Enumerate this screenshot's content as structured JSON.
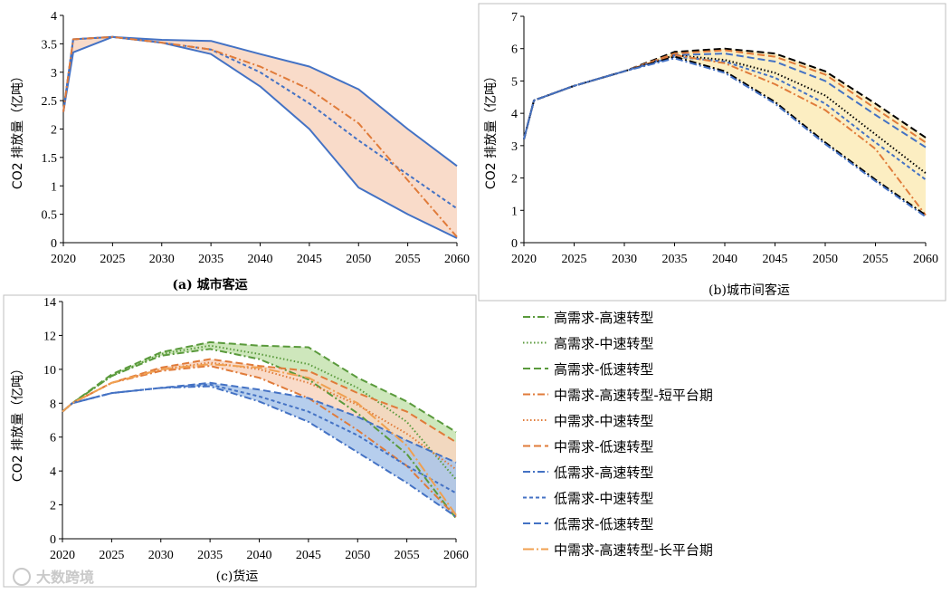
{
  "figure": {
    "watermark": "大数跨境",
    "legend": [
      {
        "name": "高需求-高速转型",
        "color": "#5a9a3c",
        "dash": "dashdot"
      },
      {
        "name": "高需求-中速转型",
        "color": "#5a9a3c",
        "dash": "dot"
      },
      {
        "name": "高需求-低速转型",
        "color": "#5a9a3c",
        "dash": "dash"
      },
      {
        "name": "中需求-高速转型-短平台期",
        "color": "#e07b3a",
        "dash": "dashdot"
      },
      {
        "name": "中需求-中速转型",
        "color": "#e07b3a",
        "dash": "dot"
      },
      {
        "name": "中需求-低速转型",
        "color": "#e07b3a",
        "dash": "dash"
      },
      {
        "name": "低需求-高速转型",
        "color": "#4472c4",
        "dash": "dashdot"
      },
      {
        "name": "低需求-中速转型",
        "color": "#4472c4",
        "dash": "shortdash"
      },
      {
        "name": "低需求-低速转型",
        "color": "#4472c4",
        "dash": "dash"
      },
      {
        "name": "中需求-高速转型-长平台期",
        "color": "#f0a050",
        "dash": "longdashdot"
      }
    ]
  },
  "chart_data": [
    {
      "type": "line",
      "caption_prefix": "(a)",
      "caption": "城市客运",
      "ylabel": "CO2 排放量（亿吨）",
      "xlim": [
        2020,
        2060
      ],
      "ylim": [
        0,
        4
      ],
      "xticks": [
        2020,
        2025,
        2030,
        2035,
        2040,
        2045,
        2050,
        2055,
        2060
      ],
      "yticks": [
        0,
        0.5,
        1,
        1.5,
        2,
        2.5,
        3,
        3.5,
        4
      ],
      "ytick_labels": [
        "0",
        "0.5",
        "1",
        "1.5",
        "2",
        "2.5",
        "3",
        "3.5",
        "4"
      ],
      "band": {
        "color": "#f8d5bf",
        "upper_series": "upper",
        "lower_series": "lower"
      },
      "series": [
        {
          "id": "upper",
          "color": "#4472c4",
          "dash": "solid",
          "x": [
            2020,
            2021,
            2025,
            2030,
            2035,
            2040,
            2045,
            2050,
            2055,
            2060
          ],
          "y": [
            2.3,
            3.58,
            3.62,
            3.57,
            3.55,
            3.32,
            3.1,
            2.7,
            2.0,
            1.35
          ]
        },
        {
          "id": "lower",
          "color": "#4472c4",
          "dash": "solid",
          "x": [
            2020,
            2021,
            2025,
            2030,
            2035,
            2040,
            2045,
            2050,
            2055,
            2060
          ],
          "y": [
            2.3,
            3.35,
            3.62,
            3.52,
            3.32,
            2.75,
            2.0,
            0.97,
            0.5,
            0.08
          ]
        },
        {
          "id": "mid",
          "color": "#4472c4",
          "dash": "shortdash",
          "x": [
            2020,
            2021,
            2025,
            2030,
            2035,
            2040,
            2045,
            2050,
            2055,
            2060
          ],
          "y": [
            2.3,
            3.58,
            3.62,
            3.52,
            3.4,
            3.0,
            2.45,
            1.8,
            1.2,
            0.6
          ]
        },
        {
          "id": "orange",
          "color": "#e07b3a",
          "dash": "dashdot",
          "x": [
            2020,
            2021,
            2025,
            2030,
            2035,
            2040,
            2045,
            2050,
            2055,
            2060
          ],
          "y": [
            2.3,
            3.58,
            3.62,
            3.52,
            3.4,
            3.1,
            2.7,
            2.1,
            1.1,
            0.1
          ]
        }
      ]
    },
    {
      "type": "line",
      "caption_prefix": "(b)",
      "caption": "城市间客运",
      "ylabel": "CO2 排放量（亿吨）",
      "xlim": [
        2020,
        2060
      ],
      "ylim": [
        0,
        7
      ],
      "xticks": [
        2020,
        2025,
        2030,
        2035,
        2040,
        2045,
        2050,
        2055,
        2060
      ],
      "yticks": [
        0,
        1,
        2,
        3,
        4,
        5,
        6,
        7
      ],
      "ytick_labels": [
        "0",
        "1",
        "2",
        "3",
        "4",
        "5",
        "6",
        "7"
      ],
      "band": {
        "color": "#fbebb7",
        "upper_series": "b1",
        "lower_series": "b7"
      },
      "series": [
        {
          "id": "b1",
          "color": "#000000",
          "dash": "dash",
          "x": [
            2020,
            2021,
            2025,
            2030,
            2035,
            2040,
            2045,
            2050,
            2055,
            2060
          ],
          "y": [
            3.2,
            4.4,
            4.85,
            5.3,
            5.9,
            6.0,
            5.85,
            5.3,
            4.3,
            3.25
          ]
        },
        {
          "id": "b2",
          "color": "#e07b3a",
          "dash": "dash",
          "x": [
            2020,
            2021,
            2025,
            2030,
            2035,
            2040,
            2045,
            2050,
            2055,
            2060
          ],
          "y": [
            3.2,
            4.4,
            4.85,
            5.3,
            5.85,
            5.95,
            5.75,
            5.2,
            4.15,
            3.1
          ]
        },
        {
          "id": "b3",
          "color": "#4472c4",
          "dash": "dash",
          "x": [
            2020,
            2021,
            2025,
            2030,
            2035,
            2040,
            2045,
            2050,
            2055,
            2060
          ],
          "y": [
            3.2,
            4.4,
            4.85,
            5.3,
            5.8,
            5.85,
            5.6,
            5.0,
            3.95,
            2.95
          ]
        },
        {
          "id": "b4",
          "color": "#000000",
          "dash": "dot",
          "x": [
            2020,
            2021,
            2025,
            2030,
            2035,
            2040,
            2045,
            2050,
            2055,
            2060
          ],
          "y": [
            3.2,
            4.4,
            4.85,
            5.3,
            5.8,
            5.65,
            5.25,
            4.55,
            3.35,
            2.15
          ]
        },
        {
          "id": "b5",
          "color": "#4472c4",
          "dash": "shortdash",
          "x": [
            2020,
            2021,
            2025,
            2030,
            2035,
            2040,
            2045,
            2050,
            2055,
            2060
          ],
          "y": [
            3.2,
            4.4,
            4.85,
            5.3,
            5.75,
            5.6,
            5.1,
            4.3,
            3.1,
            1.95
          ]
        },
        {
          "id": "b6",
          "color": "#e07b3a",
          "dash": "dashdot",
          "x": [
            2020,
            2021,
            2025,
            2030,
            2035,
            2040,
            2045,
            2050,
            2055,
            2060
          ],
          "y": [
            3.2,
            4.4,
            4.85,
            5.3,
            5.8,
            5.55,
            4.9,
            4.1,
            2.9,
            0.85
          ]
        },
        {
          "id": "b7",
          "color": "#000000",
          "dash": "dashdot",
          "x": [
            2020,
            2021,
            2025,
            2030,
            2035,
            2040,
            2045,
            2050,
            2055,
            2060
          ],
          "y": [
            3.2,
            4.4,
            4.85,
            5.3,
            5.75,
            5.3,
            4.35,
            3.1,
            1.95,
            0.85
          ]
        },
        {
          "id": "b8",
          "color": "#4472c4",
          "dash": "dashdot",
          "x": [
            2020,
            2021,
            2025,
            2030,
            2035,
            2040,
            2045,
            2050,
            2055,
            2060
          ],
          "y": [
            3.2,
            4.4,
            4.85,
            5.3,
            5.7,
            5.25,
            4.3,
            3.05,
            1.9,
            0.8
          ]
        }
      ]
    },
    {
      "type": "line",
      "caption_prefix": "(c)",
      "caption": "货运",
      "ylabel": "CO2 排放量（亿吨）",
      "xlim": [
        2020,
        2060
      ],
      "ylim": [
        0,
        14
      ],
      "xticks": [
        2020,
        2025,
        2030,
        2035,
        2040,
        2045,
        2050,
        2055,
        2060
      ],
      "yticks": [
        0,
        2,
        4,
        6,
        8,
        10,
        12,
        14
      ],
      "ytick_labels": [
        "0",
        "2",
        "4",
        "6",
        "8",
        "10",
        "12",
        "14"
      ],
      "bands": [
        {
          "color": "#c6e3b0",
          "upper_series": "h_low",
          "lower_series": "h_high"
        },
        {
          "color": "#f8d5bf",
          "upper_series": "m_low",
          "lower_series": "m_short"
        },
        {
          "color": "#a9c6ea",
          "upper_series": "l_low",
          "lower_series": "l_high"
        }
      ],
      "series": [
        {
          "id": "h_high",
          "color": "#5a9a3c",
          "dash": "dashdot",
          "x": [
            2020,
            2021,
            2025,
            2030,
            2035,
            2040,
            2045,
            2050,
            2055,
            2060
          ],
          "y": [
            7.5,
            8.0,
            9.6,
            10.8,
            11.2,
            10.6,
            9.4,
            7.4,
            5.0,
            1.2
          ]
        },
        {
          "id": "h_mid",
          "color": "#5a9a3c",
          "dash": "dot",
          "x": [
            2020,
            2021,
            2025,
            2030,
            2035,
            2040,
            2045,
            2050,
            2055,
            2060
          ],
          "y": [
            7.5,
            8.0,
            9.6,
            10.9,
            11.4,
            10.9,
            10.3,
            8.9,
            6.9,
            3.5
          ]
        },
        {
          "id": "h_low",
          "color": "#5a9a3c",
          "dash": "dash",
          "x": [
            2020,
            2021,
            2025,
            2030,
            2035,
            2040,
            2045,
            2050,
            2055,
            2060
          ],
          "y": [
            7.5,
            8.0,
            9.7,
            11.0,
            11.6,
            11.4,
            11.3,
            9.5,
            8.1,
            6.3
          ]
        },
        {
          "id": "m_short",
          "color": "#e07b3a",
          "dash": "dashdot",
          "x": [
            2020,
            2021,
            2025,
            2030,
            2035,
            2040,
            2045,
            2050,
            2055,
            2060
          ],
          "y": [
            7.5,
            8.0,
            9.2,
            9.9,
            10.2,
            9.5,
            8.3,
            6.4,
            4.3,
            1.3
          ]
        },
        {
          "id": "m_mid",
          "color": "#e07b3a",
          "dash": "dot",
          "x": [
            2020,
            2021,
            2025,
            2030,
            2035,
            2040,
            2045,
            2050,
            2055,
            2060
          ],
          "y": [
            7.5,
            8.0,
            9.2,
            10.0,
            10.4,
            10.0,
            9.2,
            7.9,
            6.2,
            4.1
          ]
        },
        {
          "id": "m_low",
          "color": "#e07b3a",
          "dash": "dash",
          "x": [
            2020,
            2021,
            2025,
            2030,
            2035,
            2040,
            2045,
            2050,
            2055,
            2060
          ],
          "y": [
            7.5,
            8.0,
            9.2,
            10.1,
            10.6,
            10.2,
            9.9,
            8.6,
            7.5,
            5.7
          ]
        },
        {
          "id": "l_high",
          "color": "#4472c4",
          "dash": "dashdot",
          "x": [
            2020,
            2021,
            2025,
            2030,
            2035,
            2040,
            2045,
            2050,
            2055,
            2060
          ],
          "y": [
            7.5,
            8.0,
            8.6,
            8.9,
            9.0,
            8.1,
            6.9,
            5.1,
            3.3,
            1.3
          ]
        },
        {
          "id": "l_mid",
          "color": "#4472c4",
          "dash": "shortdash",
          "x": [
            2020,
            2021,
            2025,
            2030,
            2035,
            2040,
            2045,
            2050,
            2055,
            2060
          ],
          "y": [
            7.5,
            8.0,
            8.6,
            8.9,
            9.1,
            8.4,
            7.5,
            6.1,
            4.3,
            2.7
          ]
        },
        {
          "id": "l_low",
          "color": "#4472c4",
          "dash": "dash",
          "x": [
            2020,
            2021,
            2025,
            2030,
            2035,
            2040,
            2045,
            2050,
            2055,
            2060
          ],
          "y": [
            7.5,
            8.0,
            8.6,
            8.9,
            9.2,
            8.8,
            8.3,
            7.2,
            5.8,
            4.5
          ]
        },
        {
          "id": "m_long",
          "color": "#f0a050",
          "dash": "longdashdot",
          "x": [
            2020,
            2021,
            2025,
            2030,
            2035,
            2040,
            2045,
            2050,
            2055,
            2060
          ],
          "y": [
            7.5,
            8.0,
            9.2,
            10.0,
            10.3,
            10.1,
            9.5,
            8.0,
            5.5,
            1.4
          ]
        }
      ]
    }
  ]
}
